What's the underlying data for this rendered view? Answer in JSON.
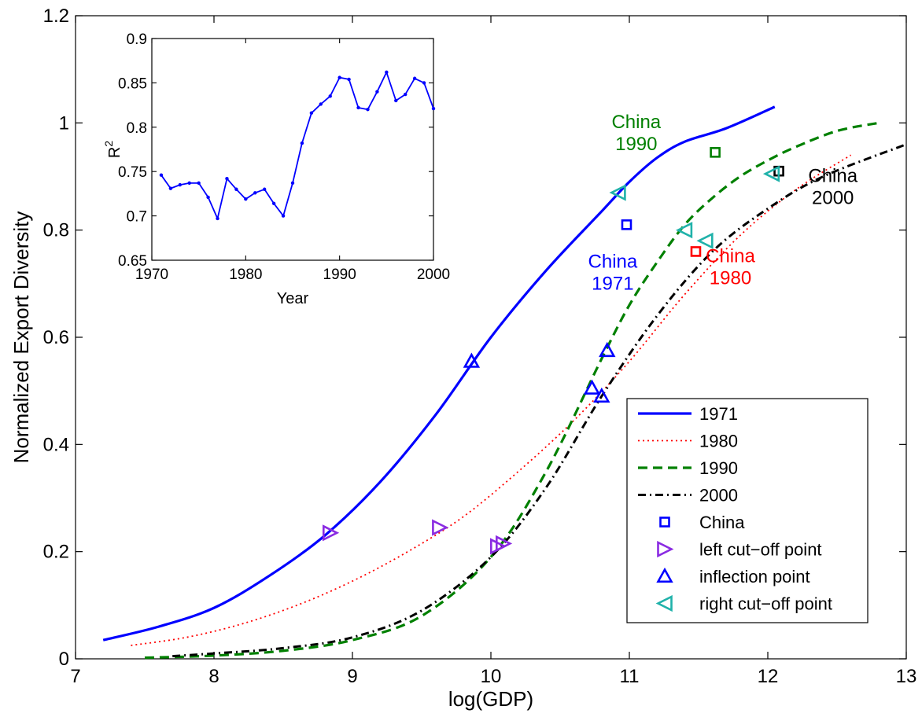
{
  "colors": {
    "blue": "#0000ff",
    "red": "#ff0000",
    "green": "#008000",
    "black": "#000000",
    "purple": "#8a2be2",
    "cyan": "#20b2aa"
  },
  "chart_data": [
    {
      "type": "line",
      "xlabel": "log(GDP)",
      "ylabel": "Normalized Export Diversity",
      "xlim": [
        7,
        13
      ],
      "ylim": [
        0,
        1.2
      ],
      "x_ticks": [
        7,
        8,
        9,
        10,
        11,
        12,
        13
      ],
      "x_tick_labels": [
        "7",
        "8",
        "9",
        "10",
        "11",
        "12",
        "13"
      ],
      "y_ticks": [
        0,
        0.2,
        0.4,
        0.6,
        0.8,
        1,
        1.2
      ],
      "y_tick_labels": [
        "0",
        "0.2",
        "0.4",
        "0.6",
        "0.8",
        "1",
        "1.2"
      ],
      "grid": false,
      "legend_position": "lower-right",
      "series": [
        {
          "name": "1971",
          "style": "solid",
          "color": "#0000ff",
          "x": [
            7.2,
            7.6,
            8.0,
            8.4,
            8.8,
            9.2,
            9.6,
            10.0,
            10.4,
            10.8,
            11.0,
            11.2,
            11.4,
            11.7,
            12.05
          ],
          "y": [
            0.035,
            0.06,
            0.095,
            0.155,
            0.23,
            0.33,
            0.455,
            0.6,
            0.725,
            0.835,
            0.89,
            0.935,
            0.965,
            0.99,
            1.03
          ]
        },
        {
          "name": "1980",
          "style": "dotted",
          "color": "#ff0000",
          "x": [
            7.4,
            7.8,
            8.2,
            8.6,
            9.0,
            9.4,
            9.8,
            10.2,
            10.6,
            11.0,
            11.4,
            11.8,
            12.2,
            12.6
          ],
          "y": [
            0.025,
            0.04,
            0.065,
            0.1,
            0.145,
            0.2,
            0.265,
            0.35,
            0.445,
            0.555,
            0.68,
            0.79,
            0.875,
            0.94
          ]
        },
        {
          "name": "1990",
          "style": "dashed",
          "color": "#008000",
          "x": [
            7.5,
            8.0,
            8.5,
            9.0,
            9.5,
            10.0,
            10.4,
            10.8,
            11.0,
            11.2,
            11.4,
            11.6,
            11.8,
            12.0,
            12.2,
            12.5,
            12.8
          ],
          "y": [
            0.002,
            0.006,
            0.015,
            0.035,
            0.08,
            0.19,
            0.35,
            0.56,
            0.66,
            0.74,
            0.81,
            0.86,
            0.9,
            0.93,
            0.955,
            0.985,
            1.0
          ]
        },
        {
          "name": "2000",
          "style": "dashdot",
          "color": "#000000",
          "x": [
            7.7,
            8.0,
            8.5,
            9.0,
            9.5,
            10.0,
            10.4,
            10.8,
            11.2,
            11.6,
            12.0,
            12.4,
            13.0
          ],
          "y": [
            0.005,
            0.01,
            0.02,
            0.04,
            0.09,
            0.19,
            0.32,
            0.49,
            0.64,
            0.76,
            0.84,
            0.9,
            0.96
          ]
        }
      ],
      "markers": [
        {
          "name": "China",
          "shape": "square",
          "color_role": "mixed",
          "points": [
            {
              "x": 10.98,
              "y": 0.81,
              "color": "#0000ff"
            },
            {
              "x": 11.48,
              "y": 0.76,
              "color": "#ff0000"
            },
            {
              "x": 11.62,
              "y": 0.945,
              "color": "#008000"
            },
            {
              "x": 12.08,
              "y": 0.91,
              "color": "#000000"
            }
          ]
        },
        {
          "name": "left cut−off point",
          "shape": "triangle-right",
          "color": "#8a2be2",
          "points": [
            {
              "x": 8.84,
              "y": 0.235
            },
            {
              "x": 9.63,
              "y": 0.245
            },
            {
              "x": 10.05,
              "y": 0.21
            },
            {
              "x": 10.09,
              "y": 0.215
            }
          ]
        },
        {
          "name": "inflection point",
          "shape": "triangle-up",
          "color": "#0000ff",
          "points": [
            {
              "x": 9.86,
              "y": 0.555
            },
            {
              "x": 10.73,
              "y": 0.505
            },
            {
              "x": 10.8,
              "y": 0.49
            },
            {
              "x": 10.84,
              "y": 0.575
            }
          ]
        },
        {
          "name": "right cut−off point",
          "shape": "triangle-left",
          "color": "#20b2aa",
          "points": [
            {
              "x": 10.92,
              "y": 0.87
            },
            {
              "x": 11.4,
              "y": 0.8
            },
            {
              "x": 11.55,
              "y": 0.78
            },
            {
              "x": 12.03,
              "y": 0.905
            }
          ]
        }
      ],
      "annotations": [
        {
          "line1": "China",
          "line2": "1971",
          "x": 10.88,
          "y": 0.73,
          "color": "#0000ff"
        },
        {
          "line1": "China",
          "line2": "1980",
          "x": 11.73,
          "y": 0.74,
          "color": "#ff0000"
        },
        {
          "line1": "China",
          "line2": "1990",
          "x": 11.05,
          "y": 0.99,
          "color": "#008000"
        },
        {
          "line1": "China",
          "line2": "2000",
          "x": 12.47,
          "y": 0.89,
          "color": "#000000"
        }
      ]
    },
    {
      "type": "line",
      "xlabel": "Year",
      "ylabel_base": "R",
      "ylabel_sup": "2",
      "xlim": [
        1970,
        2000
      ],
      "ylim": [
        0.65,
        0.9
      ],
      "x_ticks": [
        1970,
        1980,
        1990,
        2000
      ],
      "x_tick_labels": [
        "1970",
        "1980",
        "1990",
        "2000"
      ],
      "y_ticks": [
        0.65,
        0.7,
        0.75,
        0.8,
        0.85,
        0.9
      ],
      "y_tick_labels": [
        "0.65",
        "0.7",
        "0.75",
        "0.8",
        "0.85",
        "0.9"
      ],
      "grid": false,
      "series": [
        {
          "color": "#0000ff",
          "x": [
            1971,
            1972,
            1973,
            1974,
            1975,
            1976,
            1977,
            1978,
            1979,
            1980,
            1981,
            1982,
            1983,
            1984,
            1985,
            1986,
            1987,
            1988,
            1989,
            1990,
            1991,
            1992,
            1993,
            1994,
            1995,
            1996,
            1997,
            1998,
            1999,
            2000
          ],
          "y": [
            0.746,
            0.731,
            0.735,
            0.737,
            0.737,
            0.721,
            0.697,
            0.742,
            0.73,
            0.719,
            0.726,
            0.73,
            0.714,
            0.7,
            0.737,
            0.782,
            0.816,
            0.826,
            0.835,
            0.856,
            0.854,
            0.822,
            0.82,
            0.84,
            0.862,
            0.83,
            0.837,
            0.855,
            0.85,
            0.821
          ]
        }
      ]
    }
  ]
}
